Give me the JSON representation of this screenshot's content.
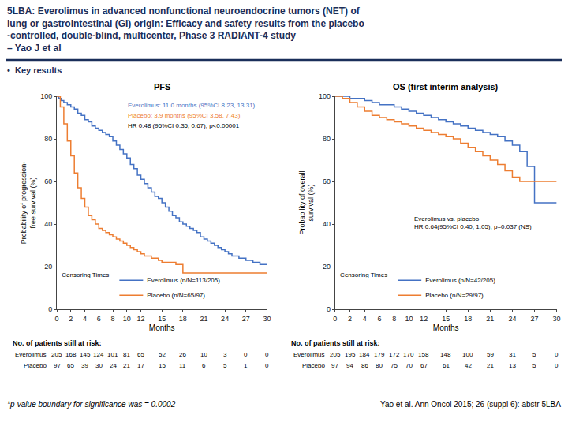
{
  "title": "5LBA: Everolimus in advanced nonfunctional neuroendocrine tumors (NET) of\nlung or gastrointestinal (GI) origin: Efficacy and safety results from the placebo\n-controlled, double-blind, multicenter, Phase 3 RADIANT-4 study\n– Yao J et al",
  "title_color": "#1a2e5a",
  "accent_color": "#1a2e5a",
  "background_color": "#ffffff",
  "subtitle": "•  Key results",
  "footnote_left": "*p-value boundary for significance was = 0.0002",
  "footnote_right": "Yao et al. Ann Oncol 2015; 26 (suppl 6): abstr 5LBA",
  "chart_data": [
    {
      "type": "line",
      "title": "PFS",
      "x_label": "Months",
      "y_label": "Probability of progression-\nfree survival (%)",
      "xlim": [
        0,
        30
      ],
      "ylim": [
        0,
        100
      ],
      "xticks": [
        0,
        2,
        4,
        6,
        8,
        10,
        12,
        15,
        18,
        21,
        24,
        27,
        30
      ],
      "yticks": [
        0,
        20,
        40,
        60,
        80,
        100
      ],
      "grid": false,
      "legend": "lower left",
      "legend_title": "Censoring Times",
      "series": [
        {
          "name": "Everolimus (n/N=113/205)",
          "color": "#4472c4",
          "line_style": "step",
          "x": [
            0,
            0.3,
            0.6,
            1,
            1.5,
            2,
            2.5,
            3,
            3.5,
            4,
            4.5,
            5,
            5.5,
            6,
            6.5,
            7,
            7.5,
            8,
            8.5,
            9,
            9.5,
            10,
            10.5,
            11,
            11.5,
            12,
            12.5,
            13,
            13.5,
            14,
            14.5,
            15,
            15.5,
            16,
            16.5,
            17,
            17.5,
            18,
            18.5,
            19,
            19.5,
            20,
            20.5,
            21,
            21.5,
            22,
            22.5,
            23,
            23.5,
            24,
            24.5,
            25,
            26,
            27,
            28,
            29,
            30
          ],
          "values": [
            100,
            99,
            98,
            97,
            96,
            95,
            94,
            92,
            91,
            89,
            88,
            86,
            85,
            84,
            83,
            82,
            81,
            79,
            77,
            75,
            73,
            71,
            68,
            66,
            63,
            61,
            59,
            57,
            55,
            53,
            52,
            50,
            48,
            46,
            44,
            43,
            41,
            40,
            39,
            38,
            37,
            36,
            34,
            33,
            32,
            31,
            30,
            29,
            28,
            27,
            26,
            25,
            24,
            23,
            22,
            21,
            21
          ]
        },
        {
          "name": "Placebo (n/N=65/97)",
          "color": "#ed7d31",
          "line_style": "step",
          "x": [
            0,
            0.5,
            1,
            1.5,
            2,
            2.5,
            3,
            3.5,
            4,
            4.5,
            5,
            5.5,
            6,
            6.5,
            7,
            7.5,
            8,
            8.5,
            9,
            9.5,
            10,
            10.5,
            11,
            11.5,
            12,
            12.5,
            13,
            13.5,
            14,
            14.5,
            15,
            15.5,
            16,
            16.5,
            17,
            17.5,
            18,
            19,
            20,
            21,
            22,
            23,
            24,
            25,
            26,
            27,
            28,
            29,
            30
          ],
          "values": [
            100,
            95,
            87,
            79,
            72,
            64,
            57,
            52,
            48,
            44,
            42,
            40,
            38,
            37,
            36,
            35,
            34,
            33,
            32,
            31,
            30,
            29,
            28,
            27,
            26,
            25,
            25,
            24,
            24,
            23,
            22,
            22,
            22,
            22,
            21,
            21,
            17,
            17,
            17,
            17,
            17,
            17,
            17,
            17,
            17,
            17,
            17,
            17,
            17
          ]
        }
      ],
      "annotations": [
        {
          "text": "Everolimus: 11.0 months (95%CI 8.23, 13.31)",
          "color": "#4472c4"
        },
        {
          "text": "Placebo: 3.9 months (95%CI 3.58, 7.43)",
          "color": "#ed7d31"
        },
        {
          "text": "HR 0.48 (95%CI 0.35, 0.67); p<0.00001",
          "color": "black"
        }
      ],
      "at_risk": {
        "title": "No. of patients still at risk:",
        "rows": [
          {
            "name": "Everolimus",
            "values": [
              205,
              168,
              145,
              124,
              101,
              81,
              65,
              52,
              26,
              10,
              3,
              0,
              0
            ]
          },
          {
            "name": "Placebo",
            "values": [
              97,
              65,
              39,
              30,
              24,
              21,
              17,
              15,
              11,
              6,
              5,
              1,
              0
            ]
          }
        ]
      }
    },
    {
      "type": "line",
      "title": "OS (first interim analysis)",
      "x_label": "Months",
      "y_label": "Probability of overall\nsurvival (%)",
      "xlim": [
        0,
        30
      ],
      "ylim": [
        0,
        100
      ],
      "xticks": [
        0,
        2,
        4,
        6,
        8,
        10,
        12,
        15,
        18,
        21,
        24,
        27,
        30
      ],
      "yticks": [
        0,
        20,
        40,
        60,
        80,
        100
      ],
      "grid": false,
      "legend": "lower left",
      "legend_title": "Censoring Times",
      "series": [
        {
          "name": "Everolimus (n/N=42/205)",
          "color": "#4472c4",
          "line_style": "step",
          "x": [
            0,
            1,
            2,
            3,
            4,
            5,
            6,
            7,
            8,
            9,
            10,
            11,
            12,
            13,
            14,
            15,
            16,
            17,
            18,
            19,
            20,
            21,
            22,
            23,
            24,
            25,
            26,
            27,
            28,
            29,
            30
          ],
          "values": [
            100,
            100,
            99,
            99,
            98,
            97,
            96,
            96,
            95,
            94,
            93,
            92,
            91,
            90,
            89,
            88,
            87,
            86,
            85,
            84,
            83,
            82,
            81,
            79,
            77,
            74,
            67,
            50,
            50,
            50,
            50
          ]
        },
        {
          "name": "Placebo (n/N=29/97)",
          "color": "#ed7d31",
          "line_style": "step",
          "x": [
            0,
            1,
            2,
            3,
            4,
            5,
            6,
            7,
            8,
            9,
            10,
            11,
            12,
            13,
            14,
            15,
            16,
            17,
            18,
            19,
            20,
            21,
            22,
            23,
            24,
            25,
            26,
            27,
            28,
            29,
            30
          ],
          "values": [
            100,
            99,
            97,
            95,
            93,
            91,
            90,
            89,
            88,
            87,
            86,
            85,
            84,
            83,
            82,
            81,
            80,
            78,
            76,
            74,
            72,
            70,
            68,
            65,
            62,
            60,
            60,
            60,
            60,
            60,
            60
          ]
        }
      ],
      "annotations": [
        {
          "text": "Everolimus vs. placebo\nHR 0.64(95%CI 0.40, 1.05); p=0.037 (NS)",
          "color": "black"
        }
      ],
      "at_risk": {
        "title": "No. of patients still at risk:",
        "rows": [
          {
            "name": "Everolimus",
            "values": [
              205,
              195,
              184,
              179,
              172,
              170,
              158,
              148,
              100,
              59,
              31,
              5,
              0
            ]
          },
          {
            "name": "Placebo",
            "values": [
              97,
              94,
              86,
              80,
              75,
              70,
              67,
              61,
              42,
              21,
              13,
              5,
              0
            ]
          }
        ]
      }
    }
  ]
}
